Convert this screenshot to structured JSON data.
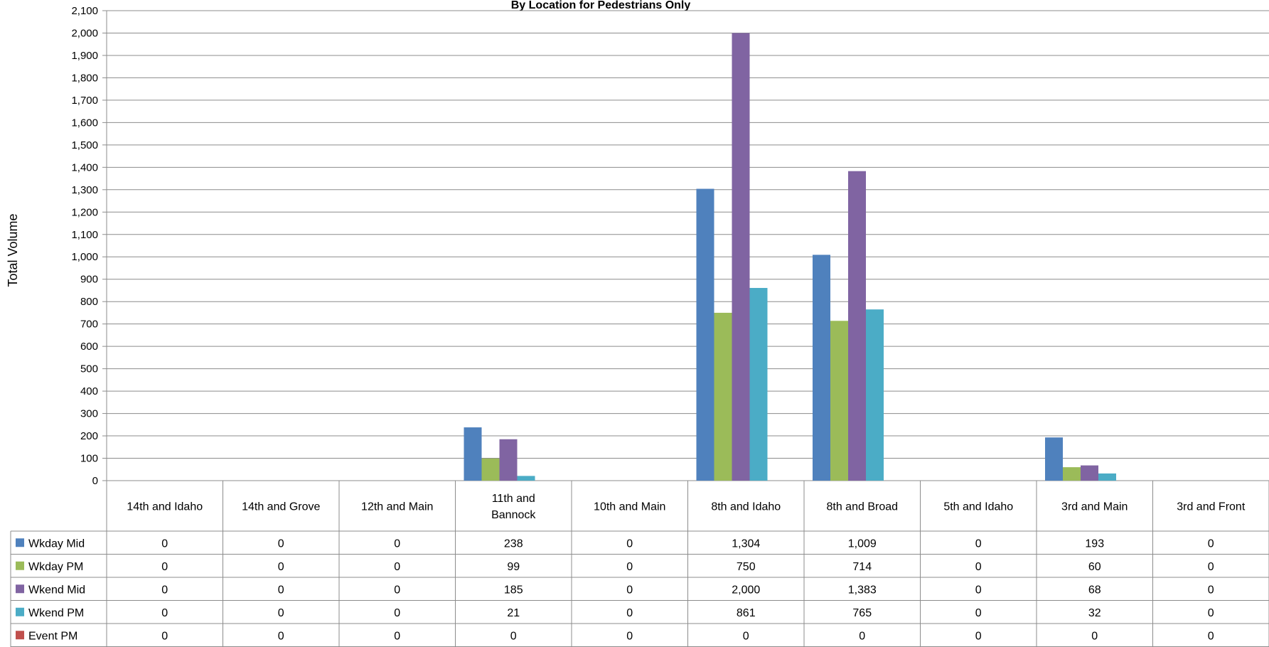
{
  "chart_data": {
    "type": "bar",
    "title": "By Location for Pedestrians Only",
    "ylabel": "Total Volume",
    "xlabel": "",
    "ylim": [
      0,
      2100
    ],
    "ytick_step": 100,
    "grid": true,
    "legend": "data-table",
    "categories": [
      [
        "14th and Idaho"
      ],
      [
        "14th and Grove"
      ],
      [
        "12th and Main"
      ],
      [
        "11th and",
        "Bannock"
      ],
      [
        "10th and Main"
      ],
      [
        "8th and Idaho"
      ],
      [
        "8th and Broad"
      ],
      [
        "5th and Idaho"
      ],
      [
        "3rd and Main"
      ],
      [
        "3rd and Front"
      ]
    ],
    "series": [
      {
        "name": "Wkday Mid",
        "color": "#4F81BD",
        "values": [
          0,
          0,
          0,
          238,
          0,
          1304,
          1009,
          0,
          193,
          0
        ],
        "labels": [
          "0",
          "0",
          "0",
          "238",
          "0",
          "1,304",
          "1,009",
          "0",
          "193",
          "0"
        ]
      },
      {
        "name": "Wkday PM",
        "color": "#9BBB59",
        "values": [
          0,
          0,
          0,
          99,
          0,
          750,
          714,
          0,
          60,
          0
        ],
        "labels": [
          "0",
          "0",
          "0",
          "99",
          "0",
          "750",
          "714",
          "0",
          "60",
          "0"
        ]
      },
      {
        "name": "Wkend Mid",
        "color": "#8064A2",
        "values": [
          0,
          0,
          0,
          185,
          0,
          2000,
          1383,
          0,
          68,
          0
        ],
        "labels": [
          "0",
          "0",
          "0",
          "185",
          "0",
          "2,000",
          "1,383",
          "0",
          "68",
          "0"
        ]
      },
      {
        "name": "Wkend PM",
        "color": "#4BACC6",
        "values": [
          0,
          0,
          0,
          21,
          0,
          861,
          765,
          0,
          32,
          0
        ],
        "labels": [
          "0",
          "0",
          "0",
          "21",
          "0",
          "861",
          "765",
          "0",
          "32",
          "0"
        ]
      },
      {
        "name": "Event PM",
        "color": "#C0504D",
        "values": [
          0,
          0,
          0,
          0,
          0,
          0,
          0,
          0,
          0,
          0
        ],
        "labels": [
          "0",
          "0",
          "0",
          "0",
          "0",
          "0",
          "0",
          "0",
          "0",
          "0"
        ]
      }
    ]
  }
}
